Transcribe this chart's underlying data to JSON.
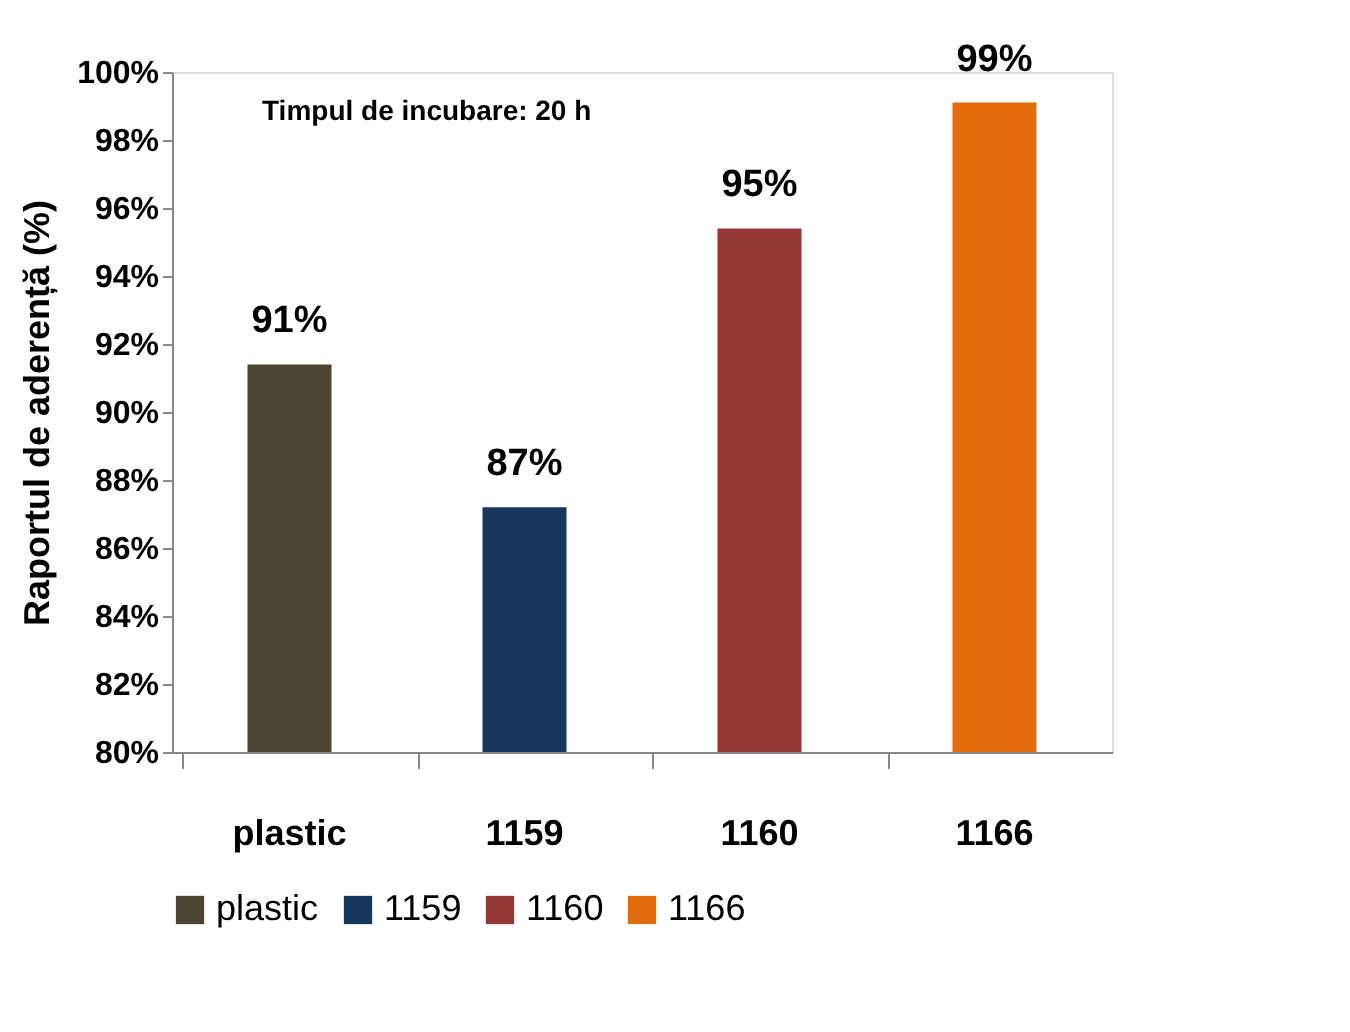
{
  "chart_data": {
    "type": "bar",
    "ylabel": "Raportul de aderență (%)",
    "categories": [
      "plastic",
      "1159",
      "1160",
      "1166"
    ],
    "series": [
      {
        "name": "plastic",
        "color": "#4a4430",
        "values": [
          91.4,
          null,
          null,
          null
        ],
        "value_labels": [
          "91%",
          null,
          null,
          null
        ]
      },
      {
        "name": "1159",
        "color": "#17375e",
        "values": [
          null,
          87.2,
          null,
          null
        ],
        "value_labels": [
          null,
          "87%",
          null,
          null
        ]
      },
      {
        "name": "1160",
        "color": "#953735",
        "values": [
          null,
          null,
          95.4,
          null
        ],
        "value_labels": [
          null,
          null,
          "95%",
          null
        ]
      },
      {
        "name": "1166",
        "color": "#e46c0a",
        "values": [
          null,
          null,
          null,
          99.1
        ],
        "value_labels": [
          null,
          null,
          null,
          "99%"
        ]
      }
    ],
    "ylim": [
      80,
      100
    ],
    "yticks": [
      {
        "value": 80,
        "label": "80%"
      },
      {
        "value": 82,
        "label": "82%"
      },
      {
        "value": 84,
        "label": "84%"
      },
      {
        "value": 86,
        "label": "86%"
      },
      {
        "value": 88,
        "label": "88%"
      },
      {
        "value": 90,
        "label": "90%"
      },
      {
        "value": 92,
        "label": "92%"
      },
      {
        "value": 94,
        "label": "94%"
      },
      {
        "value": 96,
        "label": "96%"
      },
      {
        "value": 98,
        "label": "98%"
      },
      {
        "value": 100,
        "label": "100%"
      }
    ],
    "annotations": [
      "Timpul de incubare: 20 h"
    ],
    "grid": false,
    "legend": "bottom"
  }
}
